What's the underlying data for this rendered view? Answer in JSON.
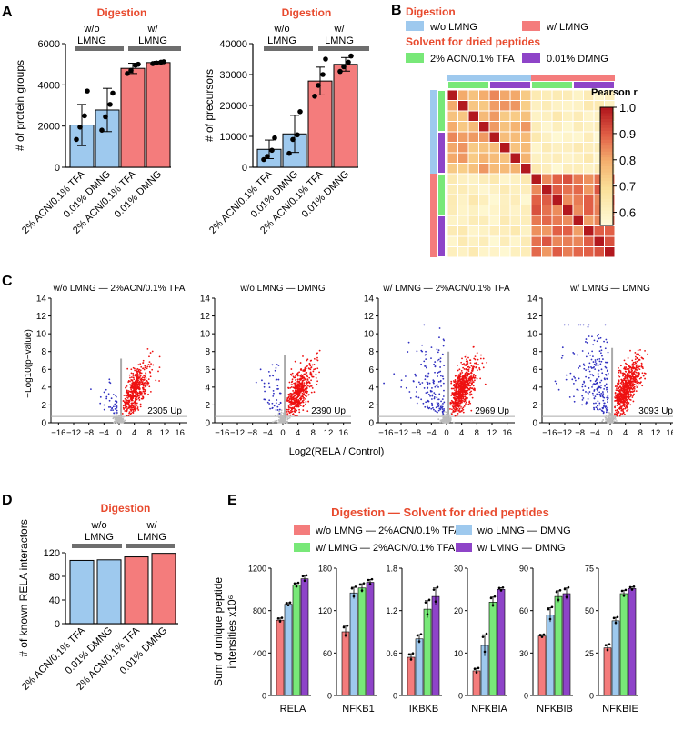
{
  "colors": {
    "blue": "#9EC9EE",
    "red": "#F47C7C",
    "green": "#78E878",
    "purple": "#8E44C8",
    "accent": "#E84A2E",
    "upred": "#EE1111",
    "downblue": "#3030C0"
  },
  "panel_labels": [
    "A",
    "B",
    "C",
    "D",
    "E"
  ],
  "panel_a": {
    "title": "Digestion",
    "group_wo": [
      "w/o",
      "LMNG"
    ],
    "group_w": [
      "w/",
      "LMNG"
    ],
    "categories": [
      "2% ACN/0.1% TFA",
      "0.01% DMNG",
      "2% ACN/0.1% TFA",
      "0.01% DMNG"
    ]
  },
  "panel_b": {
    "digestion_title": "Digestion",
    "legend_wo": "w/o LMNG",
    "legend_w": "w/ LMNG",
    "solvent_title": "Solvent for dried peptides",
    "legend_acn": "2% ACN/0.1% TFA",
    "legend_dmng": "0.01% DMNG",
    "scale_title": "Pearson r",
    "scale_ticks": [
      "1.0",
      "0.9",
      "0.8",
      "0.7",
      "0.6"
    ]
  },
  "panel_c": {
    "ylabel": "−Log10(p−value)",
    "xlabel": "Log2(RELA / Control)"
  },
  "panel_d": {
    "title": "Digestion",
    "group_wo": [
      "w/o",
      "LMNG"
    ],
    "group_w": [
      "w/",
      "LMNG"
    ]
  },
  "panel_e": {
    "title": "Digestion — Solvent for dried peptides",
    "legend": [
      "w/o LMNG — 2%ACN/0.1% TFA",
      "w/o LMNG — DMNG",
      "w/ LMNG — 2%ACN/0.1% TFA",
      "w/ LMNG — DMNG"
    ],
    "ylabel": "Sum of unique peptide intensities x10^6"
  },
  "chart_data": [
    {
      "type": "bar",
      "id": "A1",
      "categories": [
        "2% ACN/0.1% TFA",
        "0.01% DMNG",
        "2% ACN/0.1% TFA",
        "0.01% DMNG"
      ],
      "values": [
        2050,
        2780,
        4800,
        5080
      ],
      "errors": [
        1000,
        1050,
        250,
        60
      ],
      "points": [
        [
          1350,
          1950,
          2500,
          3700
        ],
        [
          1800,
          2450,
          3050,
          3600
        ],
        [
          4550,
          4700,
          4950,
          5000
        ],
        [
          5030,
          5060,
          5100,
          5120
        ]
      ],
      "ylabel": "# of protein groups",
      "ylim": [
        0,
        6000
      ],
      "yticks": [
        0,
        2000,
        4000,
        6000
      ]
    },
    {
      "type": "bar",
      "id": "A2",
      "categories": [
        "2% ACN/0.1% TFA",
        "0.01% DMNG",
        "2% ACN/0.1% TFA",
        "0.01% DMNG"
      ],
      "values": [
        5800,
        10800,
        27900,
        33300
      ],
      "errors": [
        3000,
        6000,
        4500,
        2200
      ],
      "points": [
        [
          2500,
          3500,
          5500,
          9500
        ],
        [
          4500,
          9000,
          10500,
          18000
        ],
        [
          23000,
          26500,
          30000,
          35000
        ],
        [
          31000,
          32500,
          34000,
          36000
        ]
      ],
      "ylabel": "# of precursors",
      "ylim": [
        0,
        40000
      ],
      "yticks": [
        0,
        10000,
        20000,
        30000,
        40000
      ]
    },
    {
      "type": "heatmap",
      "id": "B",
      "matrix_size": 16,
      "within_wo_range": [
        0.72,
        0.85
      ],
      "within_w_range": [
        0.82,
        0.92
      ],
      "between_range": [
        0.57,
        0.65
      ],
      "diagonal": 1.0,
      "colorbar_range": [
        0.55,
        1.0
      ]
    },
    {
      "type": "scatter",
      "id": "C",
      "panels": [
        {
          "title": "w/o LMNG — 2%ACN/0.1% TFA",
          "up_label": "2305 Up",
          "up_count": 2305
        },
        {
          "title": "w/o LMNG — DMNG",
          "up_label": "2390 Up",
          "up_count": 2390
        },
        {
          "title": "w/ LMNG — 2%ACN/0.1% TFA",
          "up_label": "2969 Up",
          "up_count": 2969
        },
        {
          "title": "w/ LMNG — DMNG",
          "up_label": "3093 Up",
          "up_count": 3093
        }
      ],
      "xlim": [
        -18,
        18
      ],
      "ylim": [
        0,
        14
      ],
      "xticks": [
        -16,
        -12,
        -8,
        -4,
        0,
        4,
        8,
        12,
        16
      ],
      "yticks": [
        0,
        2,
        4,
        6,
        8,
        10,
        12,
        14
      ],
      "xlabel": "Log2(RELA / Control)",
      "ylabel": "−Log10(p−value)"
    },
    {
      "type": "bar",
      "id": "D",
      "categories": [
        "2% ACN/0.1% TFA",
        "0.01% DMNG",
        "2% ACN/0.1% TFA",
        "0.01% DMNG"
      ],
      "values": [
        107,
        108,
        113,
        119
      ],
      "ylabel": "# of known RELA interactors",
      "ylim": [
        0,
        120
      ],
      "yticks": [
        0,
        40,
        80,
        120
      ]
    },
    {
      "type": "bar",
      "id": "E",
      "series": [
        "w/o LMNG — 2%ACN/0.1% TFA",
        "w/o LMNG — DMNG",
        "w/ LMNG — 2%ACN/0.1% TFA",
        "w/ LMNG — DMNG"
      ],
      "proteins": [
        {
          "name": "RELA",
          "values": [
            710,
            860,
            1040,
            1100
          ],
          "errors": [
            20,
            15,
            20,
            30
          ],
          "ylim": [
            0,
            1200
          ],
          "yticks": [
            0,
            400,
            800,
            1200
          ]
        },
        {
          "name": "NFKB1",
          "values": [
            90,
            145,
            152,
            160
          ],
          "errors": [
            8,
            8,
            6,
            4
          ],
          "ylim": [
            0,
            180
          ],
          "yticks": [
            0,
            60,
            120,
            180
          ]
        },
        {
          "name": "IKBKB",
          "values": [
            0.54,
            0.8,
            1.22,
            1.4
          ],
          "errors": [
            0.05,
            0.06,
            0.12,
            0.12
          ],
          "ylim": [
            0,
            1.8
          ],
          "yticks": [
            0,
            0.6,
            1.2,
            1.8
          ]
        },
        {
          "name": "NFKBIA",
          "values": [
            5.8,
            11.8,
            22,
            25
          ],
          "errors": [
            0.6,
            2.5,
            1.2,
            0.4
          ],
          "ylim": [
            0,
            30
          ],
          "yticks": [
            0,
            10,
            20,
            30
          ]
        },
        {
          "name": "NFKBIB",
          "values": [
            42,
            57,
            70,
            72
          ],
          "errors": [
            1,
            5,
            4,
            4
          ],
          "ylim": [
            0,
            90
          ],
          "yticks": [
            0,
            30,
            60,
            90
          ]
        },
        {
          "name": "NFKBIE",
          "values": [
            28,
            44,
            60,
            63
          ],
          "errors": [
            2,
            2,
            2,
            1
          ],
          "ylim": [
            0,
            75
          ],
          "yticks": [
            0,
            25,
            50,
            75
          ]
        }
      ],
      "ylabel": "Sum of unique peptide intensities x10^6"
    }
  ]
}
